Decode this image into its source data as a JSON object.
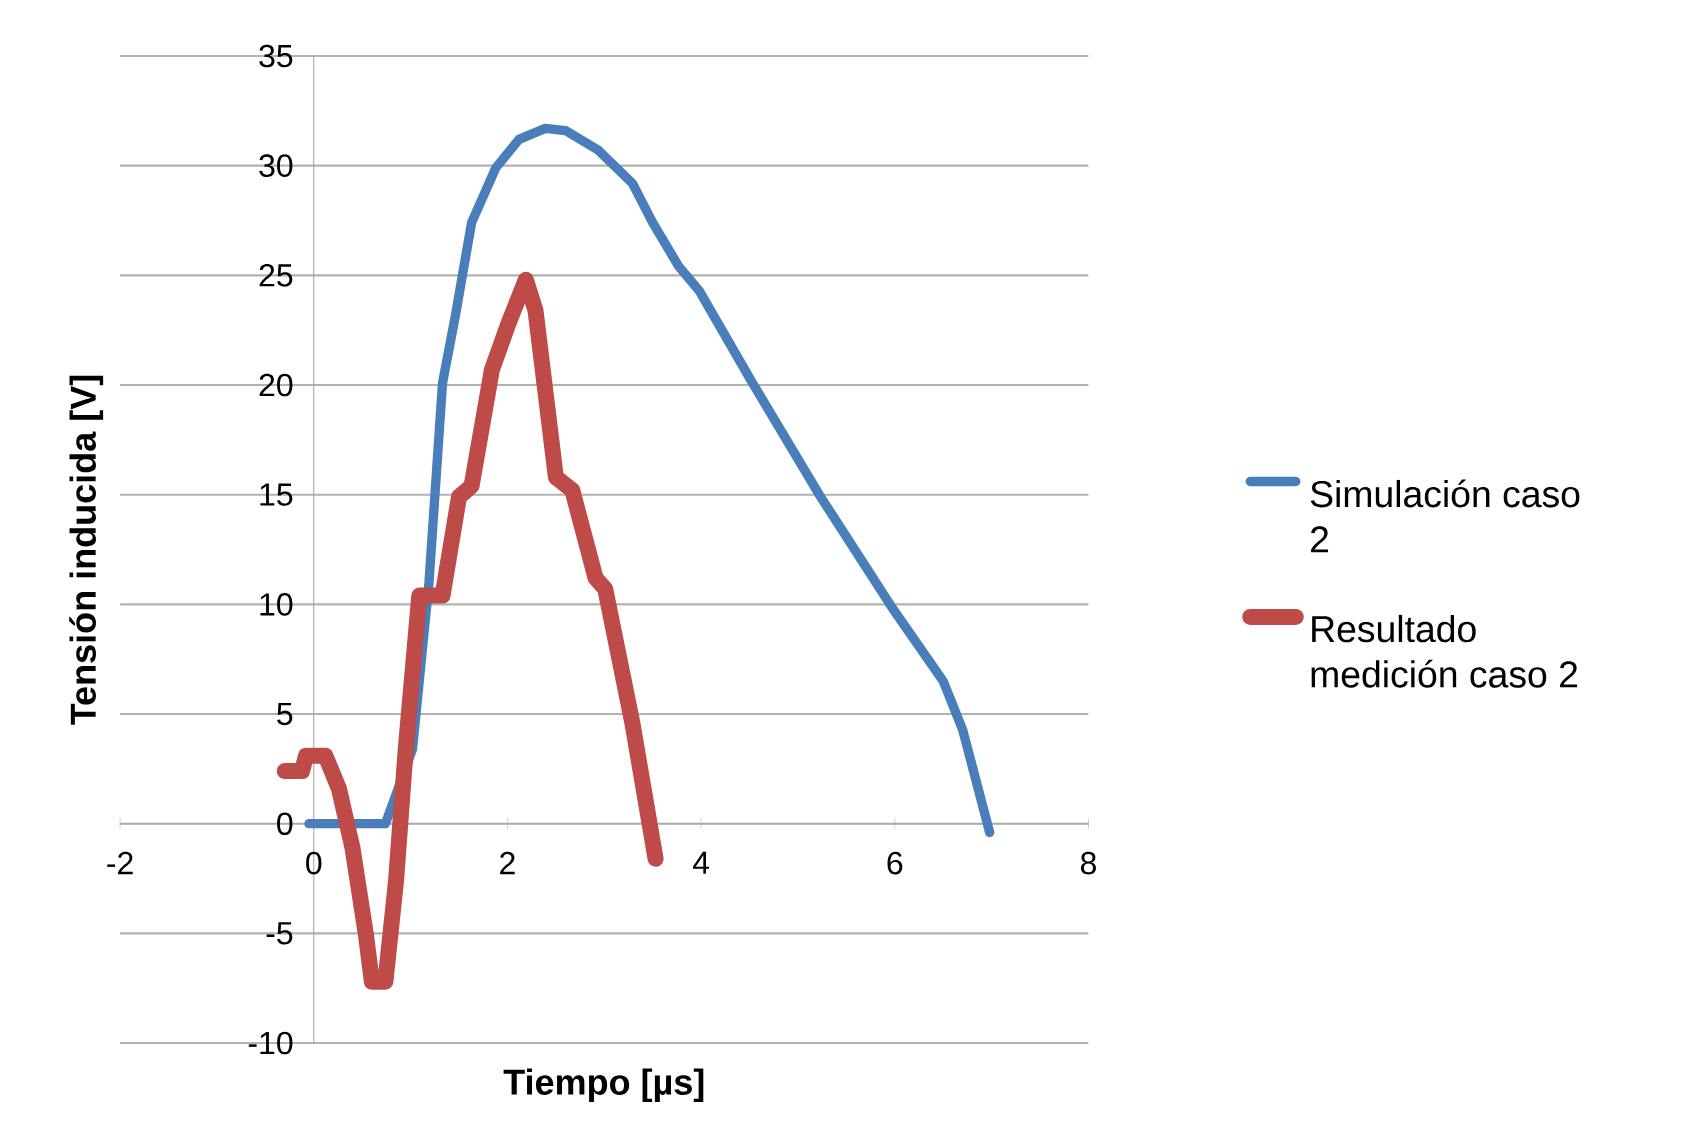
{
  "chart_data": {
    "type": "line",
    "xlabel": "Tiempo [µs]",
    "ylabel": "Tensión inducida [V]",
    "xlim": [
      -2,
      8
    ],
    "xticks": [
      -2,
      0,
      2,
      4,
      6,
      8
    ],
    "ylim": [
      -10,
      35
    ],
    "yticks": [
      -10,
      -5,
      0,
      5,
      10,
      15,
      20,
      25,
      30,
      35
    ],
    "grid": "y",
    "legend": "right",
    "series": [
      {
        "name": "Simulación caso 2",
        "color": "#4a7ebb",
        "x": [
          -0.05,
          0.74,
          1.02,
          1.19,
          1.33,
          1.46,
          1.63,
          1.88,
          2.12,
          2.39,
          2.6,
          2.94,
          3.29,
          3.5,
          3.77,
          3.98,
          4.53,
          5.22,
          5.98,
          6.5,
          6.7,
          6.98
        ],
        "values": [
          0,
          0,
          3.4,
          11,
          20.1,
          23.1,
          27.4,
          29.9,
          31.2,
          31.7,
          31.6,
          30.7,
          29.2,
          27.4,
          25.4,
          24.3,
          20.1,
          15,
          9.8,
          6.5,
          4.3,
          -0.4
        ]
      },
      {
        "name": "Resultado medición caso 2",
        "color": "#be4b48",
        "x": [
          -0.3,
          -0.12,
          -0.08,
          0.12,
          0.26,
          0.4,
          0.54,
          0.6,
          0.74,
          0.85,
          0.95,
          1.09,
          1.33,
          1.5,
          1.63,
          1.84,
          2.01,
          2.19,
          2.29,
          2.5,
          2.67,
          2.91,
          3.01,
          3.29,
          3.53
        ],
        "values": [
          2.4,
          2.4,
          3.1,
          3.1,
          1.6,
          -1.1,
          -5.1,
          -7.2,
          -7.2,
          -2.6,
          3.4,
          10.4,
          10.4,
          14.9,
          15.4,
          20.7,
          22.8,
          24.8,
          23.4,
          15.8,
          15.2,
          11.2,
          10.7,
          4.6,
          -1.6
        ]
      }
    ]
  }
}
